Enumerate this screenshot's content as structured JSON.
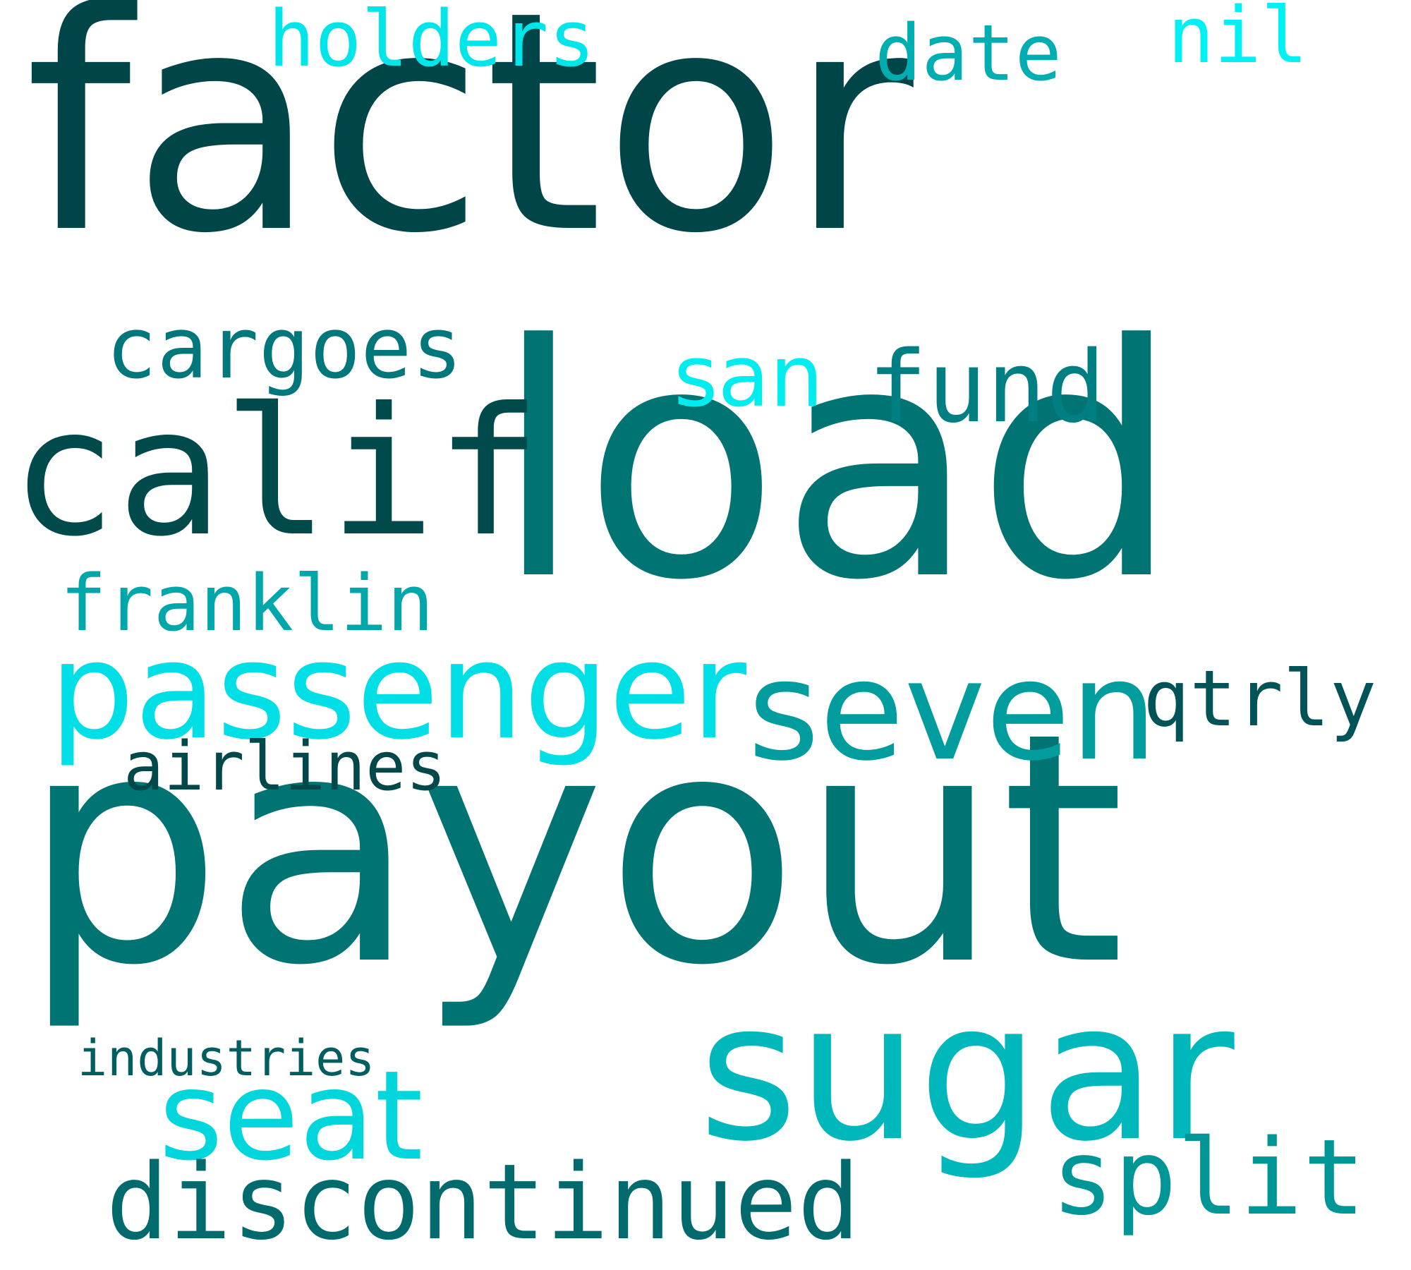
{
  "palette": {
    "darkest": "#004547",
    "dark": "#006F6F",
    "mid": "#00878A",
    "teal": "#009A9C",
    "bright": "#00B5B9",
    "light": "#00C9D2",
    "cyan": "#00E0E6",
    "aqua": "#00F5F5"
  },
  "words": [
    {
      "text": "factor",
      "color": "#004547"
    },
    {
      "text": "load",
      "color": "#007373"
    },
    {
      "text": "payout",
      "color": "#007373"
    },
    {
      "text": "sugar",
      "color": "#00B8BB"
    },
    {
      "text": "calif",
      "color": "#004A4C"
    },
    {
      "text": "passenger",
      "color": "#00DFE5"
    },
    {
      "text": "seven",
      "color": "#009C9E"
    },
    {
      "text": "seat",
      "color": "#00D6DC"
    },
    {
      "text": "discontinued",
      "color": "#006A6C"
    },
    {
      "text": "split",
      "color": "#009597"
    },
    {
      "text": "fund",
      "color": "#007F82"
    },
    {
      "text": "cargoes",
      "color": "#00777A"
    },
    {
      "text": "san",
      "color": "#00EDEF"
    },
    {
      "text": "holders",
      "color": "#00E5EA"
    },
    {
      "text": "date",
      "color": "#00AEB2"
    },
    {
      "text": "nil",
      "color": "#00F1F3"
    },
    {
      "text": "franklin",
      "color": "#00A7AA"
    },
    {
      "text": "airlines",
      "color": "#00484A"
    },
    {
      "text": "qtrly",
      "color": "#005356"
    },
    {
      "text": "industries",
      "color": "#005E60"
    }
  ]
}
